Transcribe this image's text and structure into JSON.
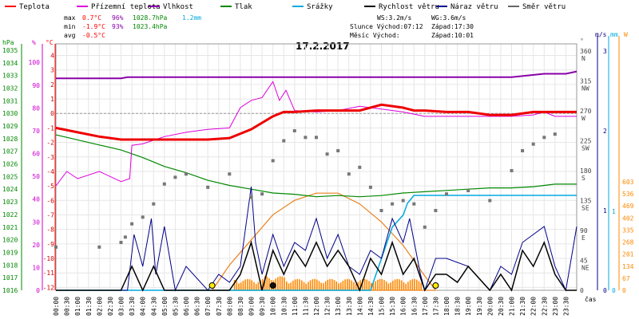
{
  "chart_data": {
    "type": "line",
    "title": "17.2.2017",
    "legend": [
      {
        "label": "Teplota",
        "color": "#ff0000"
      },
      {
        "label": "Přízemní teplota",
        "color": "#dd00dd"
      },
      {
        "label": "Vlhkost",
        "color": "#8800aa"
      },
      {
        "label": "Tlak",
        "color": "#008800"
      },
      {
        "label": "Srážky",
        "color": "#00aadd"
      },
      {
        "label": "Rychlost větru",
        "color": "#000000"
      },
      {
        "label": "Náraz větru",
        "color": "#000088"
      },
      {
        "label": "Směr větru",
        "color": "#666666"
      }
    ],
    "stats": {
      "max": {
        "label": "max",
        "temp": "0.7°C",
        "hum": "96%",
        "press": "1028.7hPa",
        "rain": "1.2mm"
      },
      "min": {
        "label": "min",
        "temp": "-1.9°C",
        "hum": "93%",
        "press": "1023.4hPa"
      },
      "avg": {
        "label": "avg",
        "temp": "-0.5°C"
      }
    },
    "info": {
      "ws": "WS:3.2m/s",
      "wg": "WG:3.6m/s",
      "sun": "Slunce Východ:07:12",
      "sun_set": "Západ:17:30",
      "moon": "Měsíc  Východ:",
      "moon_set": "Západ:10:01"
    },
    "axes": {
      "left_pressure": {
        "unit": "hPa",
        "ticks": [
          "1035",
          "1034",
          "1033",
          "1032",
          "1031",
          "1030",
          "1029",
          "1028",
          "1027",
          "1026",
          "1025",
          "1024",
          "1023",
          "1022",
          "1021",
          "1020",
          "1019",
          "1018",
          "1017",
          "1016"
        ]
      },
      "left_humidity": {
        "unit": "%",
        "ticks": [
          "100",
          "90",
          "80",
          "70",
          "60",
          "50",
          "40",
          "30",
          "20",
          "10",
          "0"
        ]
      },
      "left_temp": {
        "unit": "°C",
        "ticks": [
          "4",
          "3",
          "2",
          "1",
          "0",
          "-1",
          "-2",
          "-3",
          "-4",
          "-5",
          "-6",
          "-7",
          "-8",
          "-9",
          "-10",
          "-11",
          "-12"
        ]
      },
      "right_dir": {
        "unit": "°",
        "ticks": [
          {
            "v": "360",
            "l": "N"
          },
          {
            "v": "315",
            "l": "NW"
          },
          {
            "v": "270",
            "l": "W"
          },
          {
            "v": "225",
            "l": "SW"
          },
          {
            "v": "180",
            "l": "S"
          },
          {
            "v": "135",
            "l": "SE"
          },
          {
            "v": "90",
            "l": "E"
          },
          {
            "v": "45",
            "l": "NE"
          },
          {
            "v": "0",
            "l": ""
          }
        ]
      },
      "right_wind": {
        "unit": "m/s",
        "ticks": [
          "3",
          "2",
          "1",
          "0"
        ]
      },
      "right_rain": {
        "unit": "mm",
        "ticks": [
          "1",
          "0"
        ]
      },
      "right_solar": {
        "unit": "W",
        "ticks": [
          "603",
          "536",
          "469",
          "402",
          "335",
          "268",
          "201",
          "134",
          "67",
          "0"
        ]
      },
      "x_label": "čas",
      "x_ticks": [
        "00:00",
        "00:30",
        "01:00",
        "01:30",
        "02:00",
        "02:30",
        "03:00",
        "03:30",
        "04:00",
        "04:30",
        "05:00",
        "05:30",
        "06:00",
        "06:30",
        "07:00",
        "07:30",
        "08:00",
        "08:30",
        "09:00",
        "09:30",
        "10:00",
        "10:30",
        "11:00",
        "11:30",
        "12:00",
        "12:30",
        "13:00",
        "13:30",
        "14:00",
        "14:30",
        "15:00",
        "15:30",
        "16:00",
        "16:30",
        "17:00",
        "17:30",
        "18:00",
        "18:30",
        "19:00",
        "19:30",
        "20:00",
        "20:30",
        "21:00",
        "21:30",
        "22:00",
        "22:30",
        "23:00",
        "23:30"
      ]
    },
    "series": {
      "temperature": {
        "x": [
          0,
          1,
          2,
          3,
          4,
          5,
          6,
          7,
          8,
          9,
          10,
          10.5,
          11,
          12,
          13,
          14,
          15,
          16,
          16.5,
          17,
          18,
          19,
          20,
          21,
          22,
          23,
          24
        ],
        "y": [
          -1,
          -1.3,
          -1.6,
          -1.8,
          -1.8,
          -1.8,
          -1.8,
          -1.8,
          -1.7,
          -1.1,
          -0.2,
          0.1,
          0.1,
          0.2,
          0.2,
          0.2,
          0.6,
          0.4,
          0.2,
          0.2,
          0.1,
          0.1,
          -0.1,
          -0.1,
          0.1,
          0.1,
          0.1
        ]
      },
      "ground_temperature": {
        "x": [
          0,
          0.5,
          1,
          2,
          3,
          3.4,
          3.5,
          4,
          5,
          6,
          7,
          8,
          8.5,
          9,
          9.5,
          10,
          10.3,
          10.6,
          11,
          12,
          13,
          14,
          15,
          16,
          17,
          18,
          19,
          20,
          21,
          22,
          22.5,
          23,
          24
        ],
        "y": [
          -5,
          -4,
          -4.5,
          -4,
          -4.7,
          -4.5,
          -2.2,
          -2.1,
          -1.6,
          -1.3,
          -1.1,
          -1.0,
          0.4,
          0.9,
          1.1,
          2.2,
          0.9,
          1.6,
          0.2,
          0.1,
          0.2,
          0.5,
          0.3,
          0.1,
          -0.2,
          -0.2,
          -0.2,
          -0.2,
          -0.2,
          -0.1,
          0.1,
          -0.2,
          -0.2
        ]
      },
      "humidity": {
        "x": [
          0,
          3,
          3.3,
          6,
          9,
          12,
          15,
          18,
          21,
          22.5,
          23.5,
          24
        ],
        "y": [
          93,
          93,
          93.5,
          93.5,
          93.5,
          93.5,
          93.5,
          93.5,
          93.5,
          95,
          95,
          96
        ]
      },
      "pressure": {
        "x": [
          0,
          1,
          2,
          3,
          4,
          5,
          6,
          7,
          8,
          9,
          10,
          11,
          12,
          13,
          14,
          15,
          16,
          17,
          18,
          19,
          20,
          21,
          22,
          23,
          24
        ],
        "y": [
          1028.3,
          1027.9,
          1027.5,
          1027.1,
          1026.5,
          1025.8,
          1025.3,
          1024.7,
          1024.3,
          1024.0,
          1023.7,
          1023.6,
          1023.4,
          1023.5,
          1023.4,
          1023.5,
          1023.7,
          1023.8,
          1023.9,
          1024.0,
          1024.1,
          1024.1,
          1024.2,
          1024.4,
          1024.4
        ]
      },
      "rain": {
        "x": [
          0,
          14.5,
          15,
          15.5,
          16,
          16.2,
          16.5,
          17,
          24
        ],
        "y": [
          0,
          0,
          0.4,
          0.8,
          0.95,
          1.1,
          1.2,
          1.2,
          1.2
        ]
      },
      "wind_speed": {
        "x": [
          0,
          3,
          3.5,
          4,
          4.5,
          5,
          6,
          7,
          8,
          8.5,
          9,
          9.5,
          10,
          10.5,
          11,
          11.5,
          12,
          12.5,
          13,
          13.5,
          14,
          14.5,
          15,
          15.5,
          16,
          16.5,
          17,
          17.5,
          18,
          18.5,
          19,
          20,
          20.5,
          21,
          21.5,
          22,
          22.5,
          23,
          23.5,
          24
        ],
        "y": [
          0,
          0,
          0.3,
          0,
          0.3,
          0,
          0,
          0,
          0,
          0.2,
          0.6,
          0,
          0.5,
          0.2,
          0.5,
          0.3,
          0.6,
          0.3,
          0.5,
          0.3,
          0,
          0.4,
          0.2,
          0.6,
          0.2,
          0.4,
          0,
          0.2,
          0.2,
          0.1,
          0.3,
          0,
          0.2,
          0,
          0.5,
          0.3,
          0.6,
          0.2,
          0,
          0
        ]
      },
      "wind_gust": {
        "x": [
          0,
          3.3,
          3.6,
          4,
          4.4,
          4.6,
          5,
          5.5,
          6,
          7,
          7.5,
          8,
          8.5,
          9,
          9.2,
          9.5,
          10,
          10.5,
          11,
          11.5,
          12,
          12.5,
          13,
          13.5,
          14,
          14.5,
          15,
          15.5,
          16,
          16.3,
          16.8,
          17,
          17.5,
          18,
          19,
          20,
          20.5,
          21,
          21.5,
          22,
          22.5,
          23,
          23.5,
          24
        ],
        "y": [
          0,
          0,
          0.7,
          0.3,
          0.9,
          0.2,
          0.8,
          0,
          0.3,
          0,
          0.2,
          0.1,
          0.3,
          1.3,
          0.6,
          0.2,
          0.7,
          0.3,
          0.6,
          0.5,
          0.9,
          0.4,
          0.7,
          0.3,
          0.2,
          0.5,
          0.4,
          0.9,
          0.6,
          0.9,
          0.2,
          0,
          0.4,
          0.4,
          0.3,
          0,
          0.3,
          0.2,
          0.6,
          0.7,
          0.8,
          0.3,
          0,
          0.8
        ]
      },
      "wind_direction": {
        "x": [
          0,
          2,
          3.0,
          3.2,
          3.5,
          4,
          4.5,
          5,
          5.5,
          6,
          7,
          8,
          9,
          9.5,
          10,
          10.5,
          11,
          11.5,
          12,
          12.5,
          13,
          13.5,
          14,
          14.5,
          15,
          15.5,
          16,
          16.5,
          17,
          17.5,
          18,
          19,
          20,
          21,
          21.5,
          22,
          22.5,
          23
        ],
        "y": [
          65,
          65,
          72,
          80,
          100,
          110,
          130,
          160,
          170,
          175,
          155,
          175,
          140,
          145,
          195,
          225,
          240,
          230,
          230,
          205,
          210,
          175,
          185,
          155,
          120,
          130,
          135,
          130,
          95,
          120,
          145,
          150,
          135,
          180,
          210,
          220,
          230,
          235
        ]
      },
      "solar": {
        "x": [
          7.2,
          8,
          9,
          10,
          11,
          12,
          13,
          14,
          15,
          16,
          17,
          17.5
        ],
        "y": [
          0,
          140,
          280,
          420,
          500,
          540,
          540,
          480,
          380,
          250,
          80,
          0
        ]
      }
    }
  }
}
